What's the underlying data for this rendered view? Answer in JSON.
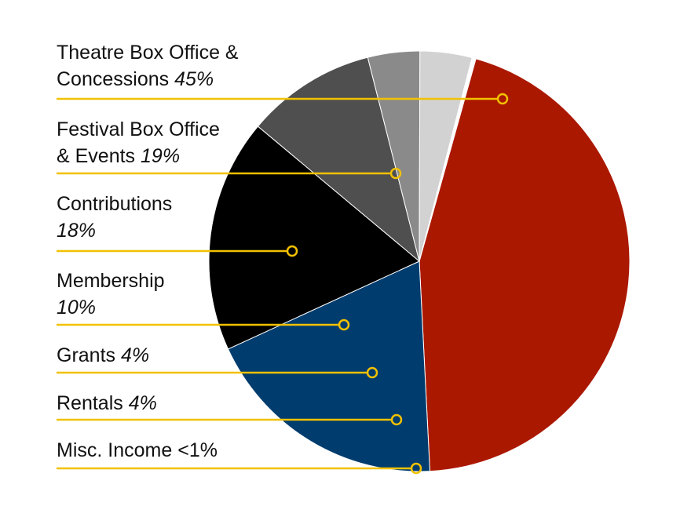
{
  "chart_data": {
    "type": "pie",
    "title": "",
    "slices": [
      {
        "name_lines": [
          "Theatre Box Office &",
          "Concessions"
        ],
        "pct_label": "45%",
        "value": 45,
        "color": "#ab1800"
      },
      {
        "name_lines": [
          "Festival Box Office",
          "& Events"
        ],
        "pct_label": "19%",
        "value": 19,
        "color": "#003c6e"
      },
      {
        "name_lines": [
          "Contributions"
        ],
        "pct_label": "18%",
        "value": 18,
        "color": "#000000"
      },
      {
        "name_lines": [
          "Membership"
        ],
        "pct_label": "10%",
        "value": 10,
        "color": "#4f4f4f"
      },
      {
        "name_lines": [
          "Grants"
        ],
        "pct_label": "4%",
        "value": 4,
        "color": "#8a8a8a"
      },
      {
        "name_lines": [
          "Rentals"
        ],
        "pct_label": "4%",
        "value": 4,
        "color": "#d2d2d2"
      },
      {
        "name_lines": [
          "Misc. Income"
        ],
        "pct_label": "<1%",
        "value": 0.3,
        "color": "#ffffff"
      }
    ],
    "leader_color": "#f2c100"
  }
}
